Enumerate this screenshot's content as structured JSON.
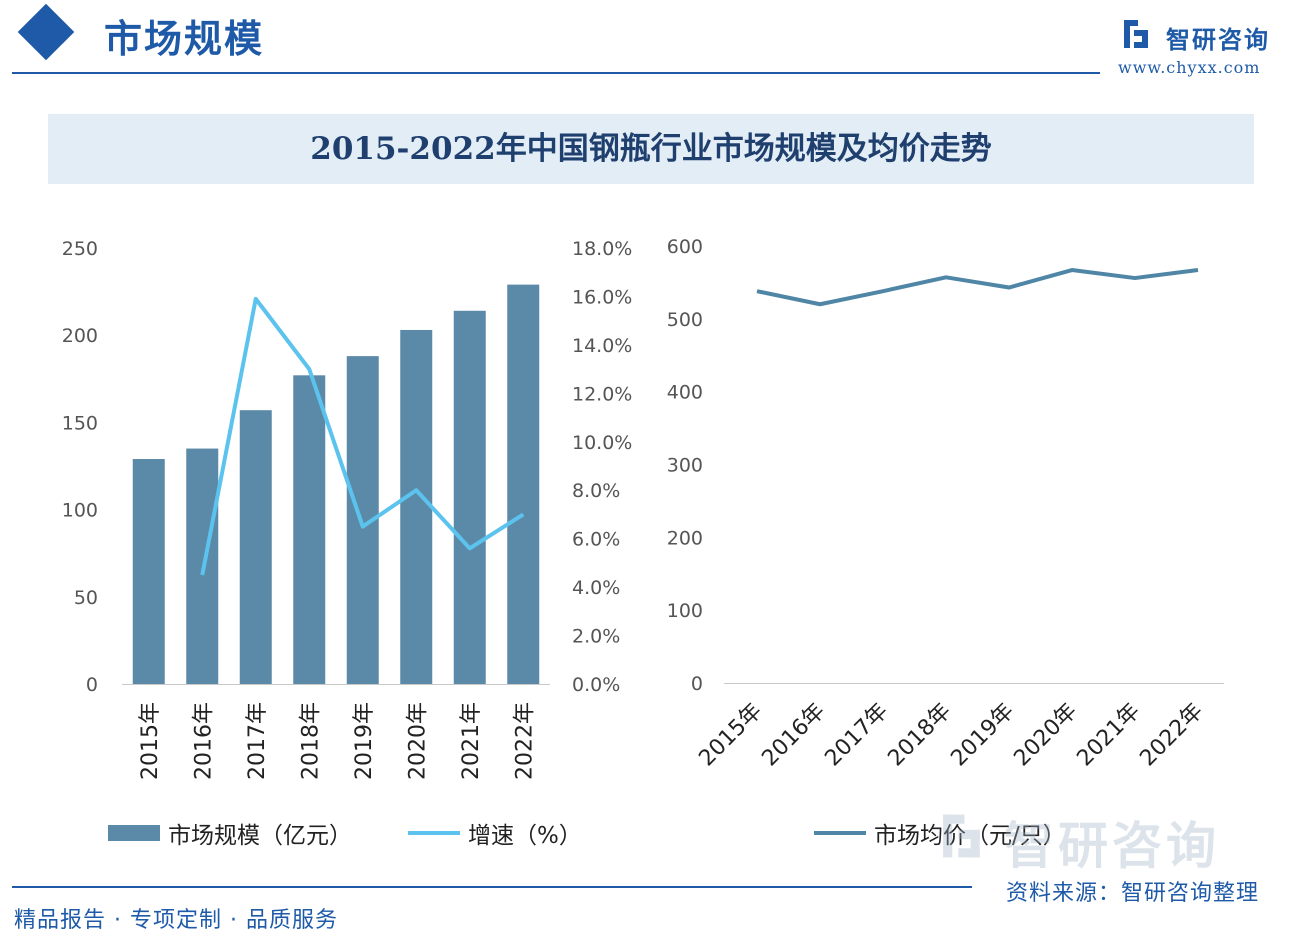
{
  "header": {
    "section_title": "市场规模",
    "logo_text": "智研咨询",
    "logo_url": "www.chyxx.com"
  },
  "chart_title": "2015-2022年中国钢瓶行业市场规模及均价走势",
  "footer": {
    "left": "精品报告 · 专项定制 · 品质服务",
    "right": "资料来源：智研咨询整理"
  },
  "watermark_brand": "智研咨询",
  "colors": {
    "brand": "#1e5aa8",
    "bar": "#5b8aa8",
    "growth_line": "#5cc3ee",
    "price_line": "#4f86a6"
  },
  "chart_data": [
    {
      "type": "bar",
      "categories": [
        "2015年",
        "2016年",
        "2017年",
        "2018年",
        "2019年",
        "2020年",
        "2021年",
        "2022年"
      ],
      "series": [
        {
          "name": "市场规模（亿元）",
          "type": "bar",
          "axis": "left",
          "values": [
            129,
            135,
            157,
            177,
            188,
            203,
            214,
            229
          ]
        },
        {
          "name": "增速（%）",
          "type": "line",
          "axis": "right",
          "values": [
            null,
            4.5,
            15.9,
            13.0,
            6.5,
            8.0,
            5.6,
            7.0
          ]
        }
      ],
      "left_axis": {
        "ylim": [
          0,
          250
        ],
        "ticks": [
          "0",
          "50",
          "100",
          "150",
          "200",
          "250"
        ]
      },
      "right_axis": {
        "ylim": [
          0,
          18
        ],
        "ticks": [
          "0.0%",
          "2.0%",
          "4.0%",
          "6.0%",
          "8.0%",
          "10.0%",
          "12.0%",
          "14.0%",
          "16.0%",
          "18.0%"
        ]
      },
      "legend": [
        "市场规模（亿元）",
        "增速（%）"
      ],
      "legend_position": "bottom",
      "grid": false
    },
    {
      "type": "line",
      "categories": [
        "2015年",
        "2016年",
        "2017年",
        "2018年",
        "2019年",
        "2020年",
        "2021年",
        "2022年"
      ],
      "series": [
        {
          "name": "市场均价（元/只）",
          "values": [
            538,
            520,
            538,
            557,
            543,
            567,
            556,
            567
          ]
        }
      ],
      "ylim": [
        0,
        600
      ],
      "ticks": [
        "0",
        "100",
        "200",
        "300",
        "400",
        "500",
        "600"
      ],
      "legend": [
        "市场均价（元/只）"
      ],
      "legend_position": "bottom",
      "grid": false
    }
  ]
}
